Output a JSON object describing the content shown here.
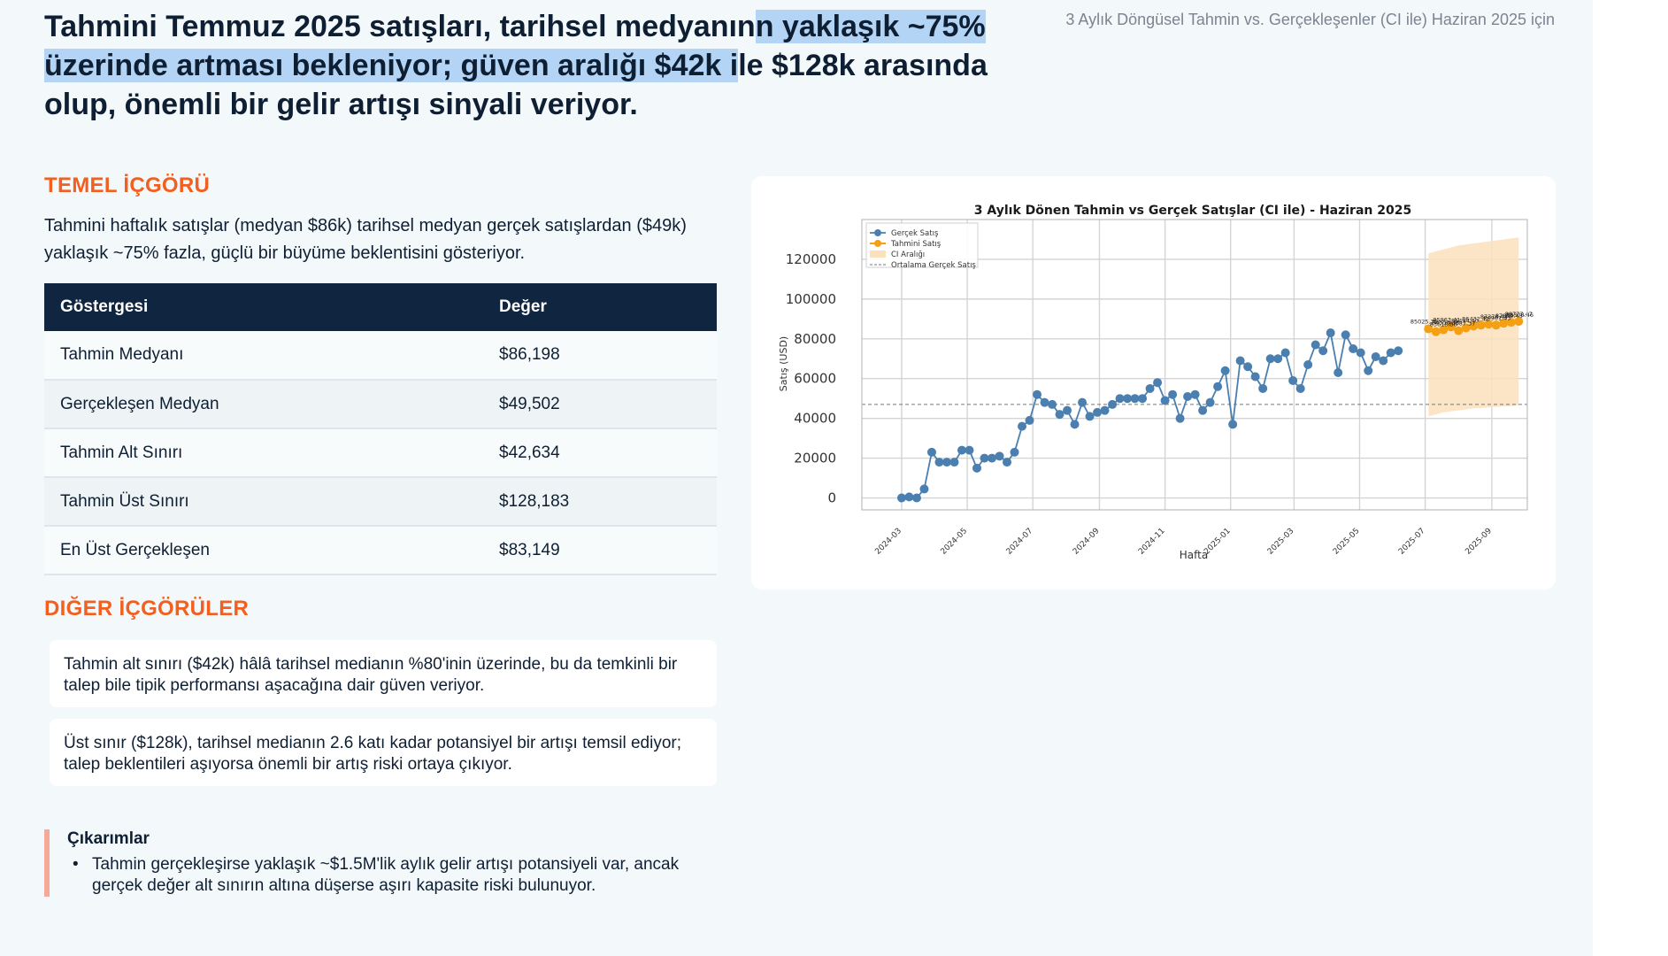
{
  "headline": {
    "part1": "Tahmini Temmuz 2025 satışları, tarihsel medyanın",
    "highlight": "n yaklaşık ~75% üzerinde artması bekleniyor; güven aralığı $42k i",
    "part2": "le $128k arasında olup, önemli bir gelir artışı sinyali veriyor."
  },
  "subtitle": "3 Aylık Döngüsel Tahmin vs. Gerçekleşenler (CI ile) Haziran 2025 için",
  "core_insight": {
    "title": "TEMEL İÇGÖRÜ",
    "text": "Tahmini haftalık satışlar (medyan $86k) tarihsel medyan gerçek satışlardan ($49k) yaklaşık ~75% fazla, güçlü bir büyüme beklentisini gösteriyor."
  },
  "table": {
    "headers": [
      "Göstergesi",
      "Değer"
    ],
    "rows": [
      [
        "Tahmin Medyanı",
        "$86,198"
      ],
      [
        "Gerçekleşen Medyan",
        "$49,502"
      ],
      [
        "Tahmin Alt Sınırı",
        "$42,634"
      ],
      [
        "Tahmin Üst Sınırı",
        "$128,183"
      ],
      [
        "En Üst Gerçekleşen",
        "$83,149"
      ]
    ]
  },
  "other_insights": {
    "title": "DIĞER İÇGÖRÜLER",
    "cards": [
      "Tahmin alt sınırı ($42k) hâlâ tarihsel medianın %80'inin üzerinde, bu da temkinli bir talep bile tipik performansı aşacağına dair güven veriyor.",
      "Üst sınır ($128k), tarihsel medianın 2.6 katı kadar potansiyel bir artışı temsil ediyor; talep beklentileri aşıyorsa önemli bir artış riski ortaya çıkıyor."
    ]
  },
  "takeaways": {
    "title": "Çıkarımlar",
    "items": [
      "Tahmin gerçekleşirse yaklaşık ~$1.5M'lik aylık gelir artışı potansiyeli var, ancak gerçek değer alt sınırın altına düşerse aşırı kapasite riski bulunuyor."
    ]
  },
  "colors": {
    "actual": "#4a7fb0",
    "forecast": "#f5a014",
    "ci": "#fbe0bc",
    "accent": "#f25f1f"
  },
  "chart_data": {
    "type": "line",
    "title": "3 Aylık Dönen Tahmin vs Gerçek Satışlar (CI ile) - Haziran 2025",
    "xlabel": "Hafta",
    "ylabel": "Satış (USD)",
    "ylim": [
      -6000,
      140000
    ],
    "xlim": [
      "2024-01-24",
      "2025-10-04"
    ],
    "yticks": [
      0,
      20000,
      40000,
      60000,
      80000,
      100000,
      120000
    ],
    "xticks": [
      "2024-03",
      "2024-05",
      "2024-07",
      "2024-09",
      "2024-11",
      "2025-01",
      "2025-03",
      "2025-05",
      "2025-07",
      "2025-09"
    ],
    "grid": true,
    "legend_position": "top-left",
    "legend": [
      "Gerçek Satış",
      "Tahmini Satış",
      "CI Aralığı",
      "Ortalama Gerçek Satış"
    ],
    "mean_actual": 47000,
    "series": [
      {
        "name": "Gerçek Satış",
        "x": [
          "2024-03-01",
          "2024-03-08",
          "2024-03-15",
          "2024-03-22",
          "2024-03-29",
          "2024-04-05",
          "2024-04-12",
          "2024-04-19",
          "2024-04-26",
          "2024-05-03",
          "2024-05-10",
          "2024-05-17",
          "2024-05-24",
          "2024-05-31",
          "2024-06-07",
          "2024-06-14",
          "2024-06-21",
          "2024-06-28",
          "2024-07-05",
          "2024-07-12",
          "2024-07-19",
          "2024-07-26",
          "2024-08-02",
          "2024-08-09",
          "2024-08-16",
          "2024-08-23",
          "2024-08-30",
          "2024-09-06",
          "2024-09-13",
          "2024-09-20",
          "2024-09-27",
          "2024-10-04",
          "2024-10-11",
          "2024-10-18",
          "2024-10-25",
          "2024-11-01",
          "2024-11-08",
          "2024-11-15",
          "2024-11-22",
          "2024-11-29",
          "2024-12-06",
          "2024-12-13",
          "2024-12-20",
          "2024-12-27",
          "2025-01-03",
          "2025-01-10",
          "2025-01-17",
          "2025-01-24",
          "2025-01-31",
          "2025-02-07",
          "2025-02-14",
          "2025-02-21",
          "2025-02-28",
          "2025-03-07",
          "2025-03-14",
          "2025-03-21",
          "2025-03-28",
          "2025-04-04",
          "2025-04-11",
          "2025-04-18",
          "2025-04-25",
          "2025-05-02",
          "2025-05-09",
          "2025-05-16",
          "2025-05-23",
          "2025-05-30",
          "2025-06-06"
        ],
        "values": [
          0,
          500,
          0,
          4500,
          23000,
          18000,
          18000,
          18000,
          24000,
          24000,
          15000,
          20000,
          20000,
          21000,
          18000,
          23000,
          36000,
          39000,
          52000,
          48000,
          47000,
          42000,
          44000,
          37000,
          48000,
          41000,
          43000,
          44000,
          47000,
          50000,
          50000,
          50000,
          50000,
          55000,
          58000,
          49000,
          52000,
          40000,
          51000,
          52000,
          44000,
          48000,
          56000,
          64000,
          37000,
          69000,
          66000,
          61000,
          55000,
          70000,
          70000,
          73000,
          59000,
          55000,
          67000,
          77000,
          74000,
          83000,
          63000,
          82000,
          75000,
          73000,
          64000,
          71000,
          69000,
          73000,
          74000
        ]
      },
      {
        "name": "Tahmini Satış",
        "x": [
          "2025-07-04",
          "2025-07-11",
          "2025-07-18",
          "2025-07-25",
          "2025-08-01",
          "2025-08-08",
          "2025-08-15",
          "2025-08-22",
          "2025-08-29",
          "2025-09-05",
          "2025-09-12",
          "2025-09-19",
          "2025-09-26"
        ],
        "values": [
          85025.39,
          83618.36,
          84556.38,
          85963.41,
          84087.37,
          85494.4,
          86432.42,
          86902.0,
          87370.44,
          86901.43,
          87839.45,
          88308.46,
          88777.47
        ],
        "ci_lower": [
          41000,
          42000,
          43000,
          43500,
          44000,
          44500,
          45000,
          45200,
          45500,
          45800,
          46000,
          46200,
          46500
        ],
        "ci_upper": [
          123000,
          124000,
          125000,
          126000,
          127000,
          127500,
          128000,
          128500,
          129000,
          129500,
          130000,
          130500,
          131000
        ]
      }
    ],
    "point_labels": [
      {
        "x": "2025-06-30",
        "y": 85025.39,
        "text": "85025.39"
      },
      {
        "x": "2025-07-18",
        "y": 83618.36,
        "text": "83618.36"
      },
      {
        "x": "2025-07-20",
        "y": 84556.38,
        "text": "84556.38"
      },
      {
        "x": "2025-07-21",
        "y": 85963.41,
        "text": "85963.41"
      },
      {
        "x": "2025-08-04",
        "y": 84087.37,
        "text": "84087.37"
      },
      {
        "x": "2025-08-07",
        "y": 85494.4,
        "text": "85494.40"
      },
      {
        "x": "2025-08-17",
        "y": 86432.42,
        "text": "86432.42"
      },
      {
        "x": "2025-09-03",
        "y": 87370.44,
        "text": "87370.44"
      },
      {
        "x": "2025-09-06",
        "y": 86901.43,
        "text": "86901.43"
      },
      {
        "x": "2025-09-17",
        "y": 87839.45,
        "text": "87839.45"
      },
      {
        "x": "2025-09-27",
        "y": 88308.46,
        "text": "88308.46"
      },
      {
        "x": "2025-09-26",
        "y": 88777.47,
        "text": "88777.47"
      }
    ]
  }
}
